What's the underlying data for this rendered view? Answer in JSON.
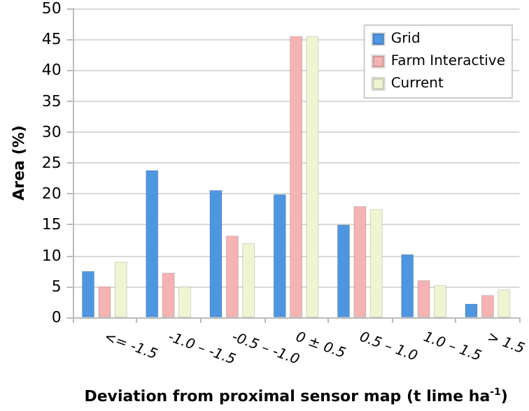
{
  "chart_data": {
    "type": "bar",
    "xlabel": "Deviation from proximal sensor map (t lime ha$^{-1}$)",
    "ylabel": "Area (%)",
    "categories": [
      "<= -1.5",
      "-1.0 – -1.5",
      "-0.5 – -1.0",
      "0 ± 0.5",
      "0.5 – 1.0",
      "1.0 – 1.5",
      "> 1.5"
    ],
    "series": [
      {
        "name": "Grid",
        "color": "#4f96e0",
        "values": [
          7.5,
          23.8,
          20.6,
          19.9,
          15,
          10.2,
          2.2
        ]
      },
      {
        "name": "Farm Interactive",
        "color": "#f5b3b3",
        "values": [
          5,
          7.2,
          13.2,
          45.5,
          18,
          6,
          3.6
        ]
      },
      {
        "name": "Current",
        "color": "#eef5d2",
        "values": [
          9,
          5,
          12,
          45.5,
          17.5,
          5.2,
          4.5
        ]
      }
    ],
    "ylim": [
      0,
      50
    ],
    "yticks": [
      0,
      5,
      10,
      15,
      20,
      25,
      30,
      35,
      40,
      45,
      50
    ],
    "grid": "y",
    "legend": "top right"
  }
}
